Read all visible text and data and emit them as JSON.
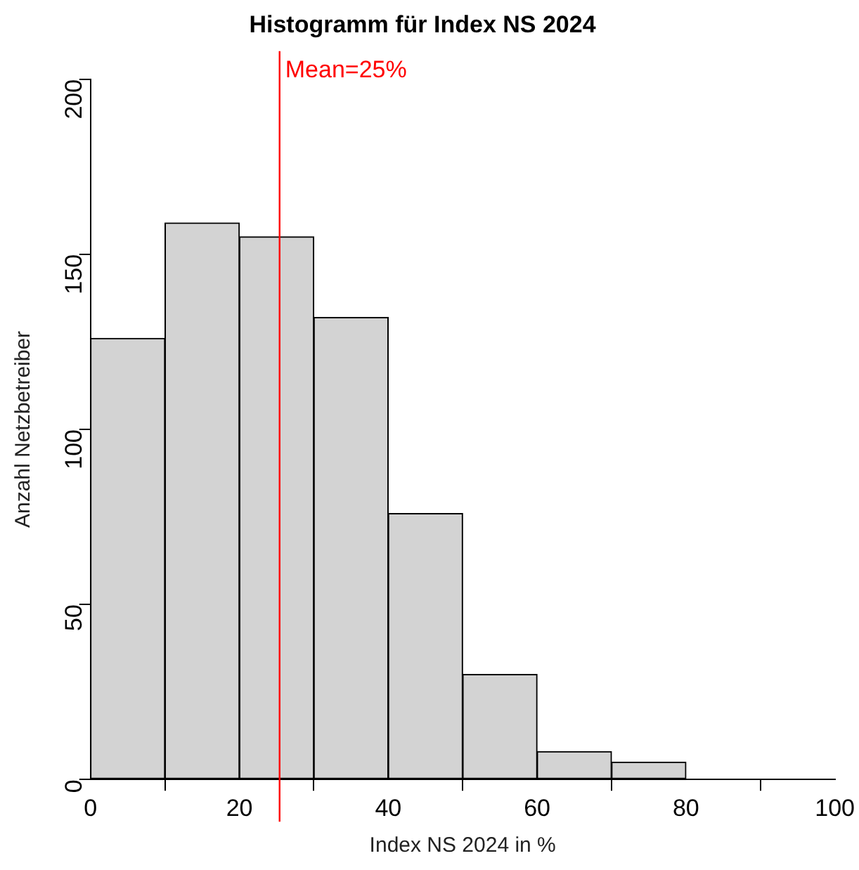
{
  "chart_data": {
    "type": "histogram",
    "title": "Histogramm für Index NS 2024",
    "xlabel": "Index NS 2024 in %",
    "ylabel": "Anzahl Netzbetreiber",
    "bins": [
      0,
      10,
      20,
      30,
      40,
      50,
      60,
      70,
      80
    ],
    "values": [
      126,
      159,
      155,
      132,
      76,
      30,
      8,
      5
    ],
    "color": "#d3d3d3",
    "xlim": [
      0,
      100
    ],
    "xticks": [
      0,
      20,
      40,
      60,
      80,
      100
    ],
    "ylim": [
      0,
      200
    ],
    "yticks": [
      0,
      50,
      100,
      150,
      200
    ],
    "grid": false,
    "legend": false,
    "ref_lines": [
      {
        "axis": "x",
        "value": 25.4,
        "label": "Mean=25%",
        "color": "#ff0000"
      }
    ]
  }
}
